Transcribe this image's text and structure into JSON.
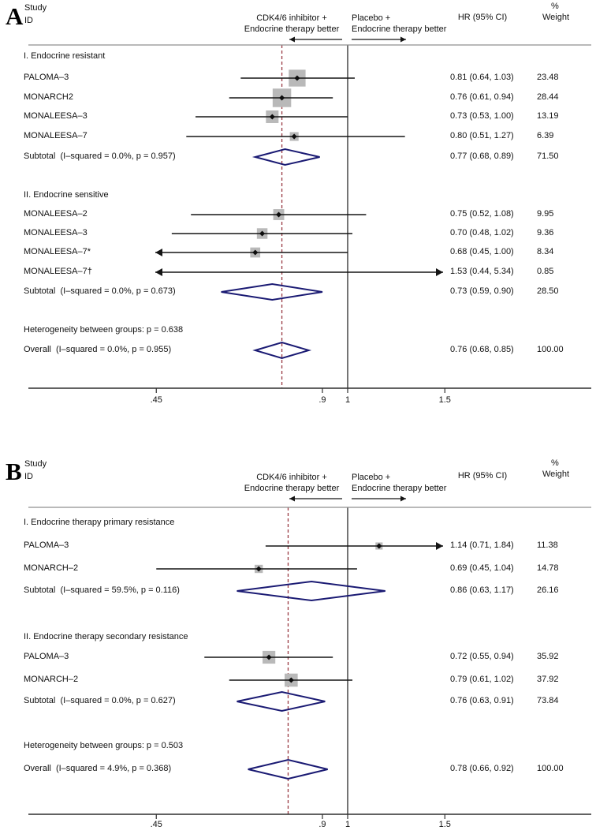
{
  "colors": {
    "box": "#b9b9b9",
    "marker": "#0d0d0d",
    "ci_line": "#151515",
    "diamond": "#1a1a73",
    "null_line": "#2a2a2a",
    "dashed_line": "#9a3a42",
    "header_rule": "#8f8f8f",
    "axis_line": "#2f2f2f",
    "text": "#111111"
  },
  "chart_data": [
    {
      "type": "forest",
      "panel_letter": "A",
      "header": {
        "study_line1": "Study",
        "study_line2": "ID",
        "left_label_line1": "CDK4/6 inhibitor +",
        "left_label_line2": "Endocrine therapy better",
        "right_label_line1": "Placebo +",
        "right_label_line2": "Endocrine therapy better",
        "hr_label": "HR (95% CI)",
        "pct_label": "%",
        "weight_label": "Weight"
      },
      "axis": {
        "scale": "log10",
        "tick_values": [
          0.45,
          0.9,
          1,
          1.5
        ],
        "tick_labels": [
          ".45",
          ".9",
          "1",
          "1.5"
        ],
        "null_value": 1
      },
      "groups": [
        {
          "heading": "I. Endocrine resistant",
          "rows": [
            {
              "label": "PALOMA–3",
              "hr": 0.81,
              "lo": 0.64,
              "hi": 1.03,
              "hr_text": "0.81 (0.64, 1.03)",
              "weight": 23.48,
              "weight_text": "23.48",
              "arrow_lo": false,
              "arrow_hi": false
            },
            {
              "label": "MONARCH2",
              "hr": 0.76,
              "lo": 0.61,
              "hi": 0.94,
              "hr_text": "0.76 (0.61, 0.94)",
              "weight": 28.44,
              "weight_text": "28.44",
              "arrow_lo": false,
              "arrow_hi": false
            },
            {
              "label": "MONALEESA–3",
              "hr": 0.73,
              "lo": 0.53,
              "hi": 1.0,
              "hr_text": "0.73 (0.53, 1.00)",
              "weight": 13.19,
              "weight_text": "13.19",
              "arrow_lo": false,
              "arrow_hi": false
            },
            {
              "label": "MONALEESA–7",
              "hr": 0.8,
              "lo": 0.51,
              "hi": 1.27,
              "hr_text": "0.80 (0.51, 1.27)",
              "weight": 6.39,
              "weight_text": "6.39",
              "arrow_lo": false,
              "arrow_hi": false
            }
          ],
          "subtotal": {
            "label": "Subtotal  (I–squared = 0.0%, p = 0.957)",
            "hr": 0.77,
            "lo": 0.68,
            "hi": 0.89,
            "hr_text": "0.77 (0.68, 0.89)",
            "weight_text": "71.50"
          }
        },
        {
          "heading": "II. Endocrine sensitive",
          "rows": [
            {
              "label": "MONALEESA–2",
              "hr": 0.75,
              "lo": 0.52,
              "hi": 1.08,
              "hr_text": "0.75 (0.52, 1.08)",
              "weight": 9.95,
              "weight_text": "9.95",
              "arrow_lo": false,
              "arrow_hi": false
            },
            {
              "label": "MONALEESA–3",
              "hr": 0.7,
              "lo": 0.48,
              "hi": 1.02,
              "hr_text": "0.70 (0.48, 1.02)",
              "weight": 9.36,
              "weight_text": "9.36",
              "arrow_lo": false,
              "arrow_hi": false
            },
            {
              "label": "MONALEESA–7*",
              "hr": 0.68,
              "lo": 0.45,
              "hi": 1.0,
              "hr_text": "0.68 (0.45, 1.00)",
              "weight": 8.34,
              "weight_text": "8.34",
              "arrow_lo": true,
              "arrow_hi": false
            },
            {
              "label": "MONALEESA–7†",
              "hr": 1.53,
              "lo": 0.44,
              "hi": 5.34,
              "hr_text": "1.53 (0.44, 5.34)",
              "weight": 0.85,
              "weight_text": "0.85",
              "arrow_lo": true,
              "arrow_hi": true
            }
          ],
          "subtotal": {
            "label": "Subtotal  (I–squared = 0.0%, p = 0.673)",
            "hr": 0.73,
            "lo": 0.59,
            "hi": 0.9,
            "hr_text": "0.73 (0.59, 0.90)",
            "weight_text": "28.50"
          }
        }
      ],
      "heterogeneity_note": "Heterogeneity between groups: p = 0.638",
      "overall": {
        "label": "Overall  (I–squared = 0.0%, p = 0.955)",
        "hr": 0.76,
        "lo": 0.68,
        "hi": 0.85,
        "hr_text": "0.76 (0.68, 0.85)",
        "weight_text": "100.00"
      }
    },
    {
      "type": "forest",
      "panel_letter": "B",
      "header": {
        "study_line1": "Study",
        "study_line2": "ID",
        "left_label_line1": "CDK4/6 inhibitor +",
        "left_label_line2": "Endocrine therapy better",
        "right_label_line1": "Placebo +",
        "right_label_line2": "Endocrine therapy better",
        "hr_label": "HR (95% CI)",
        "pct_label": "%",
        "weight_label": "Weight"
      },
      "axis": {
        "scale": "log10",
        "tick_values": [
          0.45,
          0.9,
          1,
          1.5
        ],
        "tick_labels": [
          ".45",
          ".9",
          "1",
          "1.5"
        ],
        "null_value": 1
      },
      "groups": [
        {
          "heading": "I. Endocrine therapy primary resistance",
          "rows": [
            {
              "label": "PALOMA–3",
              "hr": 1.14,
              "lo": 0.71,
              "hi": 1.84,
              "hr_text": "1.14 (0.71, 1.84)",
              "weight": 11.38,
              "weight_text": "11.38",
              "arrow_lo": false,
              "arrow_hi": true
            },
            {
              "label": "MONARCH–2",
              "hr": 0.69,
              "lo": 0.45,
              "hi": 1.04,
              "hr_text": "0.69 (0.45, 1.04)",
              "weight": 14.78,
              "weight_text": "14.78",
              "arrow_lo": false,
              "arrow_hi": false
            }
          ],
          "subtotal": {
            "label": "Subtotal  (I–squared = 59.5%, p = 0.116)",
            "hr": 0.86,
            "lo": 0.63,
            "hi": 1.17,
            "hr_text": "0.86 (0.63, 1.17)",
            "weight_text": "26.16"
          }
        },
        {
          "heading": "II. Endocrine therapy secondary resistance",
          "rows": [
            {
              "label": "PALOMA–3",
              "hr": 0.72,
              "lo": 0.55,
              "hi": 0.94,
              "hr_text": "0.72 (0.55, 0.94)",
              "weight": 35.92,
              "weight_text": "35.92",
              "arrow_lo": false,
              "arrow_hi": false
            },
            {
              "label": "MONARCH–2",
              "hr": 0.79,
              "lo": 0.61,
              "hi": 1.02,
              "hr_text": "0.79 (0.61, 1.02)",
              "weight": 37.92,
              "weight_text": "37.92",
              "arrow_lo": false,
              "arrow_hi": false
            }
          ],
          "subtotal": {
            "label": "Subtotal  (I–squared = 0.0%, p = 0.627)",
            "hr": 0.76,
            "lo": 0.63,
            "hi": 0.91,
            "hr_text": "0.76 (0.63, 0.91)",
            "weight_text": "73.84"
          }
        }
      ],
      "heterogeneity_note": "Heterogeneity between groups: p = 0.503",
      "overall": {
        "label": "Overall  (I–squared = 4.9%, p = 0.368)",
        "hr": 0.78,
        "lo": 0.66,
        "hi": 0.92,
        "hr_text": "0.78 (0.66, 0.92)",
        "weight_text": "100.00"
      }
    }
  ]
}
